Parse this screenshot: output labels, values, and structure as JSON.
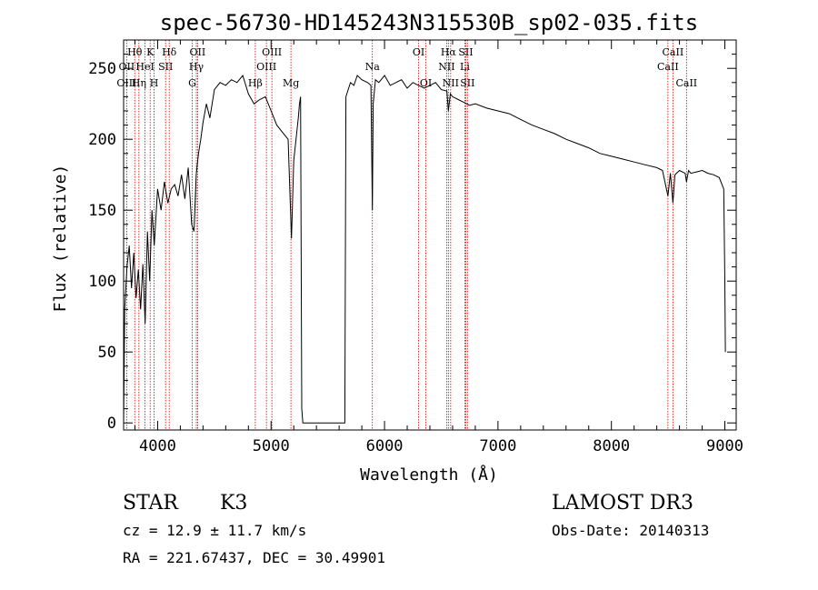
{
  "chart_data": {
    "type": "line",
    "title": "spec-56730-HD145243N315530B_sp02-035.fits",
    "xlabel": "Wavelength (Å)",
    "ylabel": "Flux (relative)",
    "xlim": [
      3700,
      9100
    ],
    "ylim": [
      -5,
      270
    ],
    "x_ticks": [
      4000,
      5000,
      6000,
      7000,
      8000,
      9000
    ],
    "y_ticks": [
      0,
      50,
      100,
      150,
      200,
      250
    ],
    "grid": false,
    "series": [
      {
        "x": [
          3700,
          3710,
          3730,
          3750,
          3770,
          3790,
          3810,
          3830,
          3850,
          3870,
          3890,
          3910,
          3930,
          3950,
          3970,
          4000,
          4030,
          4060,
          4090,
          4120,
          4150,
          4180,
          4210,
          4240,
          4270,
          4300,
          4320,
          4340,
          4360,
          4380,
          4400,
          4430,
          4460,
          4500,
          4550,
          4600,
          4650,
          4700,
          4750,
          4800,
          4850,
          4900,
          4950,
          5000,
          5050,
          5100,
          5150,
          5180,
          5200,
          5220,
          5240,
          5250,
          5260,
          5270,
          5280,
          5650,
          5660,
          5680,
          5700,
          5730,
          5760,
          5800,
          5850,
          5880,
          5893,
          5900,
          5920,
          5950,
          6000,
          6050,
          6100,
          6150,
          6200,
          6250,
          6300,
          6350,
          6400,
          6450,
          6500,
          6550,
          6563,
          6580,
          6600,
          6650,
          6700,
          6750,
          6800,
          6900,
          7000,
          7100,
          7200,
          7300,
          7400,
          7500,
          7600,
          7700,
          7800,
          7900,
          8000,
          8100,
          8200,
          8300,
          8400,
          8450,
          8498,
          8520,
          8542,
          8560,
          8600,
          8650,
          8662,
          8680,
          8700,
          8750,
          8800,
          8850,
          8900,
          8950,
          8990,
          9000,
          9005
        ],
        "y": [
          0,
          80,
          110,
          125,
          95,
          120,
          88,
          108,
          80,
          112,
          70,
          135,
          100,
          150,
          125,
          165,
          150,
          170,
          155,
          165,
          168,
          160,
          175,
          158,
          180,
          140,
          135,
          175,
          190,
          200,
          212,
          225,
          215,
          235,
          240,
          238,
          242,
          240,
          245,
          232,
          225,
          228,
          230,
          220,
          210,
          205,
          200,
          130,
          185,
          200,
          215,
          225,
          230,
          10,
          0,
          0,
          230,
          235,
          240,
          238,
          245,
          242,
          240,
          238,
          150,
          225,
          242,
          240,
          245,
          238,
          240,
          242,
          236,
          240,
          238,
          236,
          238,
          240,
          235,
          234,
          220,
          232,
          230,
          228,
          226,
          224,
          225,
          222,
          220,
          218,
          214,
          210,
          207,
          204,
          200,
          197,
          194,
          190,
          188,
          186,
          184,
          182,
          180,
          178,
          160,
          176,
          155,
          175,
          178,
          176,
          170,
          178,
          176,
          177,
          178,
          176,
          175,
          173,
          165,
          100,
          50
        ]
      }
    ],
    "line_labels": [
      {
        "text": "Hθ",
        "x": 3798,
        "row": 1
      },
      {
        "text": "OII",
        "x": 3727,
        "row": 2
      },
      {
        "text": "OIII",
        "x": 3727,
        "row": 3
      },
      {
        "text": "K",
        "x": 3934,
        "row": 1
      },
      {
        "text": "HeI",
        "x": 3889,
        "row": 2
      },
      {
        "text": "Hη",
        "x": 3835,
        "row": 3
      },
      {
        "text": "Hδ",
        "x": 4102,
        "row": 1
      },
      {
        "text": "SII",
        "x": 4070,
        "row": 2
      },
      {
        "text": "H",
        "x": 3969,
        "row": 3
      },
      {
        "text": "OII",
        "x": 4352,
        "row": 1
      },
      {
        "text": "Hγ",
        "x": 4341,
        "row": 2
      },
      {
        "text": "G",
        "x": 4305,
        "row": 3
      },
      {
        "text": "OIII",
        "x": 5007,
        "row": 1
      },
      {
        "text": "OIII",
        "x": 4959,
        "row": 2
      },
      {
        "text": "Hβ",
        "x": 4861,
        "row": 3
      },
      {
        "text": "Mg",
        "x": 5175,
        "row": 3
      },
      {
        "text": "Na",
        "x": 5893,
        "row": 2
      },
      {
        "text": "OI",
        "x": 6300,
        "row": 1
      },
      {
        "text": "OI",
        "x": 6364,
        "row": 3
      },
      {
        "text": "Hα",
        "x": 6563,
        "row": 1
      },
      {
        "text": "SII",
        "x": 6716,
        "row": 1
      },
      {
        "text": "NII",
        "x": 6548,
        "row": 2
      },
      {
        "text": "Li",
        "x": 6708,
        "row": 2
      },
      {
        "text": "NII",
        "x": 6583,
        "row": 3
      },
      {
        "text": "SII",
        "x": 6731,
        "row": 3
      },
      {
        "text": "CaII",
        "x": 8542,
        "row": 1
      },
      {
        "text": "CaII",
        "x": 8498,
        "row": 2
      },
      {
        "text": "CaII",
        "x": 8662,
        "row": 3
      }
    ],
    "line_positions": [
      3727,
      3798,
      3835,
      3889,
      3934,
      3969,
      4070,
      4102,
      4305,
      4341,
      4352,
      4861,
      4959,
      5007,
      5175,
      5893,
      6300,
      6364,
      6548,
      6563,
      6583,
      6708,
      6716,
      6731,
      8498,
      8542,
      8662
    ],
    "colors": {
      "spectrum": "#000000",
      "line_markers": "#cc0000",
      "frame": "#000000"
    }
  },
  "info": {
    "object_class": "STAR",
    "subclass": "K3",
    "survey": "LAMOST DR3",
    "redshift": "cz = 12.9 ± 11.7 km/s",
    "obs_date": "Obs-Date: 20140313",
    "coords": "RA = 221.67437, DEC =  30.49901"
  }
}
